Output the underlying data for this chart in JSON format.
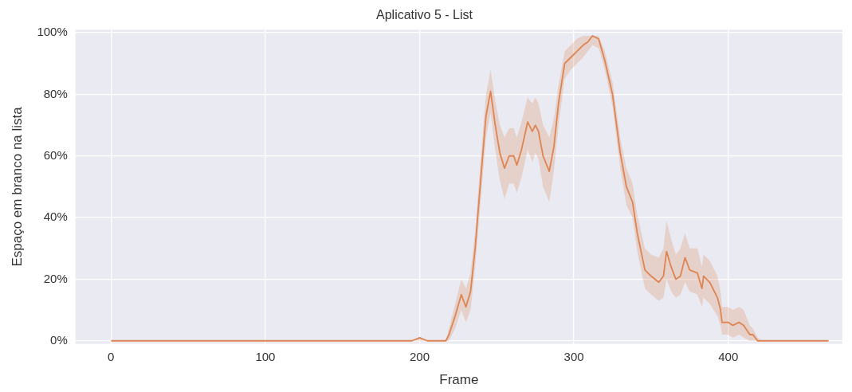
{
  "chart_data": {
    "type": "line",
    "title": "Aplicativo 5 - List",
    "xlabel": "Frame",
    "ylabel": "Espaço em branco na lista",
    "xlim": [
      -23,
      474
    ],
    "xticks": [
      0,
      100,
      200,
      300,
      400
    ],
    "ylim": [
      -1,
      101
    ],
    "yticks": [
      {
        "value": 0,
        "label": "0%"
      },
      {
        "value": 20,
        "label": "20%"
      },
      {
        "value": 40,
        "label": "40%"
      },
      {
        "value": 60,
        "label": "60%"
      },
      {
        "value": 80,
        "label": "80%"
      },
      {
        "value": 100,
        "label": "100%"
      }
    ],
    "grid": true,
    "legend": false,
    "marker": "none",
    "line_style": "solid",
    "series": [
      {
        "color": "#dd8452",
        "x": [
          0,
          100,
          195,
          200,
          205,
          217,
          219,
          223,
          227,
          230,
          233,
          236,
          240,
          243,
          246,
          249,
          252,
          255,
          258,
          261,
          263,
          266,
          270,
          273,
          275,
          277,
          280,
          284,
          287,
          290,
          294,
          298,
          302,
          306,
          309,
          312,
          316,
          320,
          325,
          330,
          334,
          338,
          341,
          346,
          350,
          355,
          358,
          360,
          363,
          366,
          369,
          372,
          375,
          380,
          383,
          384,
          388,
          393,
          395,
          396,
          400,
          403,
          407,
          410,
          414,
          416,
          419,
          422,
          440,
          465
        ],
        "values": [
          0,
          0,
          0,
          1,
          0,
          0,
          2,
          8,
          15,
          11,
          16,
          30,
          55,
          73,
          81,
          70,
          61,
          56,
          60,
          60,
          57,
          62,
          71,
          68,
          70,
          68,
          60,
          55,
          63,
          77,
          90,
          92,
          94,
          96,
          97,
          99,
          98,
          91,
          80,
          61,
          50,
          45,
          35,
          23,
          21,
          19,
          21,
          29,
          24,
          20,
          21,
          27,
          23,
          22,
          17,
          21,
          19,
          14,
          10,
          6,
          6,
          5,
          6,
          5,
          2,
          2,
          0,
          0,
          0,
          0
        ],
        "lower": [
          0,
          0,
          0,
          0,
          0,
          0,
          0,
          4,
          10,
          6,
          10,
          24,
          48,
          66,
          74,
          62,
          52,
          46,
          51,
          51,
          48,
          53,
          62,
          58,
          61,
          59,
          50,
          45,
          55,
          70,
          85,
          88,
          90,
          92,
          94,
          96,
          95,
          88,
          76,
          56,
          44,
          40,
          29,
          17,
          15,
          13,
          14,
          20,
          16,
          14,
          15,
          19,
          16,
          15,
          11,
          14,
          12,
          8,
          5,
          2,
          2,
          1,
          2,
          1,
          0,
          0,
          0,
          0,
          0,
          0
        ],
        "upper": [
          0,
          0,
          0,
          1,
          0,
          0,
          4,
          12,
          20,
          17,
          22,
          36,
          62,
          80,
          88,
          78,
          70,
          66,
          69,
          69,
          66,
          71,
          79,
          77,
          79,
          77,
          70,
          66,
          72,
          83,
          94,
          96,
          98,
          99,
          99,
          99,
          99,
          94,
          84,
          66,
          56,
          51,
          41,
          30,
          28,
          27,
          30,
          39,
          33,
          28,
          30,
          35,
          30,
          30,
          24,
          28,
          26,
          21,
          16,
          11,
          11,
          10,
          11,
          10,
          5,
          4,
          1,
          0,
          0,
          0
        ]
      }
    ]
  }
}
